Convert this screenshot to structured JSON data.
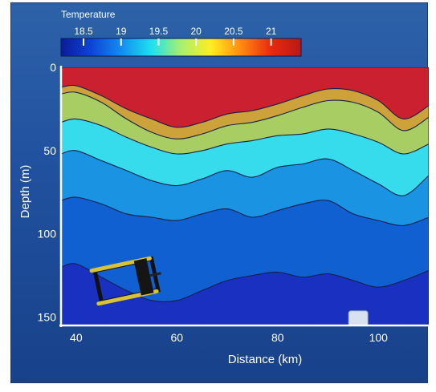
{
  "chart_data": {
    "type": "heatmap",
    "subtype": "filled-contour-section",
    "title": "",
    "xlabel": "Distance (km)",
    "ylabel": "Depth (m)",
    "xlim": [
      37,
      110
    ],
    "ylim": [
      0,
      155
    ],
    "y_inverted": true,
    "grid": false,
    "x_ticks": [
      40,
      60,
      80,
      100
    ],
    "y_ticks": [
      0,
      50,
      100,
      150
    ],
    "colorbar": {
      "label": "Temperature",
      "ticks": [
        18.5,
        19,
        19.5,
        20,
        20.5,
        21
      ],
      "range": [
        18.2,
        21.4
      ],
      "placement": "top-left",
      "colors": [
        "#0b1a9a",
        "#0c44d6",
        "#138cf0",
        "#1ee0f0",
        "#a8f070",
        "#ffee20",
        "#ff8a10",
        "#e82a10",
        "#b81818"
      ]
    },
    "bands": [
      {
        "temperature_min": 21.0,
        "color": "#cb2030",
        "x": [
          37,
          40,
          45,
          50,
          55,
          60,
          65,
          70,
          75,
          80,
          85,
          90,
          95,
          100,
          105,
          110
        ],
        "upper_depth": [
          0,
          0,
          0,
          0,
          0,
          0,
          0,
          0,
          0,
          0,
          0,
          0,
          0,
          0,
          0,
          0
        ],
        "lower_depth": [
          12,
          11,
          17,
          25,
          31,
          36,
          33,
          28,
          26,
          22,
          17,
          13,
          14,
          20,
          31,
          23
        ]
      },
      {
        "temperature_min": 20.5,
        "color": "#cea23a",
        "x": [
          37,
          40,
          45,
          50,
          55,
          60,
          65,
          70,
          75,
          80,
          85,
          90,
          95,
          100,
          105,
          110
        ],
        "lower_depth": [
          16,
          15,
          21,
          31,
          39,
          43,
          40,
          35,
          33,
          29,
          24,
          20,
          21,
          27,
          38,
          30
        ]
      },
      {
        "temperature_min": 20.0,
        "color": "#a8cd62",
        "x": [
          37,
          40,
          45,
          50,
          55,
          60,
          65,
          70,
          75,
          80,
          85,
          90,
          95,
          100,
          105,
          110
        ],
        "lower_depth": [
          33,
          31,
          35,
          42,
          48,
          52,
          50,
          46,
          44,
          41,
          40,
          37,
          40,
          45,
          52,
          46
        ]
      },
      {
        "temperature_min": 19.5,
        "color": "#36dcec",
        "x": [
          37,
          40,
          45,
          50,
          55,
          60,
          65,
          70,
          75,
          80,
          85,
          90,
          95,
          100,
          105,
          110
        ],
        "lower_depth": [
          52,
          50,
          56,
          62,
          68,
          71,
          67,
          62,
          66,
          60,
          58,
          55,
          62,
          70,
          77,
          65
        ]
      },
      {
        "temperature_min": 19.0,
        "color": "#1a93e3",
        "x": [
          37,
          40,
          45,
          50,
          55,
          60,
          65,
          70,
          75,
          80,
          85,
          90,
          95,
          100,
          105,
          110
        ],
        "lower_depth": [
          80,
          78,
          82,
          88,
          90,
          92,
          88,
          85,
          90,
          86,
          82,
          80,
          88,
          92,
          95,
          90
        ]
      },
      {
        "temperature_min": 18.5,
        "color": "#1060d2",
        "x": [
          37,
          40,
          45,
          50,
          55,
          60,
          65,
          70,
          75,
          80,
          85,
          90,
          95,
          100,
          105,
          110
        ],
        "lower_depth": [
          120,
          118,
          126,
          134,
          140,
          140,
          134,
          128,
          125,
          123,
          126,
          124,
          128,
          132,
          128,
          122
        ]
      },
      {
        "temperature_min": 18.2,
        "color": "#1a30c0",
        "x": [
          37,
          110
        ],
        "lower_depth": [
          155,
          155
        ]
      }
    ],
    "annotations": [
      {
        "type": "glider",
        "x": 50,
        "depth": 128
      },
      {
        "type": "buoy",
        "x": 96,
        "depth": 152
      }
    ]
  }
}
